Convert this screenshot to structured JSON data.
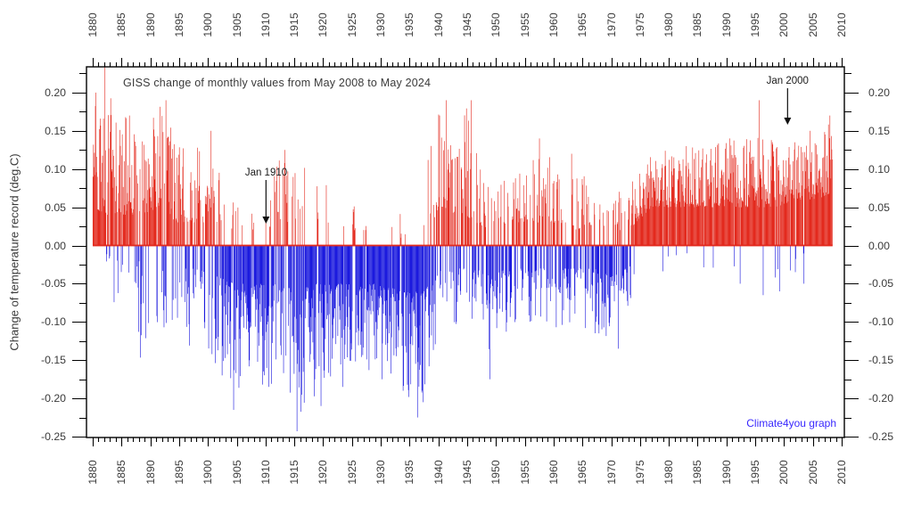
{
  "figure": {
    "title": "GISS change of monthly values from May 2008 to May 2024",
    "y_axis_title": "Change of temperature record (deg.C)",
    "watermark": "Climate4you graph",
    "watermark_color": "#3928fe",
    "annotations": [
      {
        "label": "Jan 1910",
        "year": 1910.1,
        "arrow_from_value": 0.085,
        "arrow_to_value": 0.028
      },
      {
        "label": "Jan 2000",
        "year": 2000.6,
        "arrow_from_value": 0.205,
        "arrow_to_value": 0.157
      }
    ]
  },
  "chart_data": {
    "type": "bar",
    "title": "GISS change of monthly values from May 2008 to May 2024",
    "xlabel": "",
    "ylabel": "Change of temperature record (deg.C)",
    "x_axis": {
      "min": 1880,
      "max": 2010,
      "major_step": 5,
      "minor_step": 1,
      "tick_labels": [
        "1880",
        "1885",
        "1890",
        "1895",
        "1900",
        "1905",
        "1910",
        "1915",
        "1920",
        "1925",
        "1930",
        "1935",
        "1940",
        "1945",
        "1950",
        "1955",
        "1960",
        "1965",
        "1970",
        "1975",
        "1980",
        "1985",
        "1990",
        "1995",
        "2000",
        "2005",
        "2010"
      ]
    },
    "y_axis": {
      "min": -0.253,
      "max": 0.234,
      "major_step": 0.05,
      "minor_step": 0.025,
      "tick_labels": [
        "0.20",
        "0.15",
        "0.10",
        "0.05",
        "0.00",
        "-0.05",
        "-0.10",
        "-0.15",
        "-0.20",
        "-0.25"
      ]
    },
    "bar_unit": "monthly values (one bar per month)",
    "x_data_start": 1880.0,
    "x_data_end": 2008.42,
    "colors": {
      "positive": "#e32a1e",
      "negative": "#1c1ade"
    },
    "grid": false,
    "legend": false,
    "envelope_fields": [
      "year",
      "p_positive",
      "pos_typical",
      "pos_max",
      "neg_typical",
      "neg_max"
    ],
    "envelope_keypoints": [
      [
        1880.0,
        0.92,
        0.05,
        0.22,
        0.01,
        0.05
      ],
      [
        1882.5,
        0.82,
        0.04,
        0.2,
        0.01,
        0.06
      ],
      [
        1885.5,
        0.7,
        0.04,
        0.17,
        0.02,
        0.13
      ],
      [
        1888.5,
        0.65,
        0.04,
        0.16,
        0.02,
        0.15
      ],
      [
        1891.5,
        0.66,
        0.05,
        0.19,
        0.02,
        0.14
      ],
      [
        1894.5,
        0.6,
        0.03,
        0.15,
        0.03,
        0.16
      ],
      [
        1898.0,
        0.58,
        0.03,
        0.13,
        0.03,
        0.13
      ],
      [
        1901.5,
        0.45,
        0.03,
        0.11,
        0.04,
        0.16
      ],
      [
        1904.5,
        0.3,
        0.02,
        0.08,
        0.05,
        0.21
      ],
      [
        1907.5,
        0.27,
        0.02,
        0.06,
        0.05,
        0.18
      ],
      [
        1910.0,
        0.25,
        0.02,
        0.06,
        0.05,
        0.19
      ],
      [
        1912.5,
        0.33,
        0.03,
        0.12,
        0.05,
        0.17
      ],
      [
        1915.5,
        0.28,
        0.03,
        0.1,
        0.06,
        0.23
      ],
      [
        1918.5,
        0.33,
        0.03,
        0.12,
        0.05,
        0.2
      ],
      [
        1921.5,
        0.27,
        0.02,
        0.09,
        0.05,
        0.17
      ],
      [
        1924.5,
        0.22,
        0.02,
        0.06,
        0.05,
        0.15
      ],
      [
        1927.5,
        0.22,
        0.02,
        0.09,
        0.05,
        0.17
      ],
      [
        1930.5,
        0.16,
        0.01,
        0.05,
        0.05,
        0.16
      ],
      [
        1933.5,
        0.16,
        0.01,
        0.06,
        0.06,
        0.18
      ],
      [
        1936.5,
        0.16,
        0.02,
        0.05,
        0.06,
        0.22
      ],
      [
        1938.8,
        0.35,
        0.03,
        0.15,
        0.05,
        0.16
      ],
      [
        1940.5,
        0.6,
        0.05,
        0.19,
        0.03,
        0.1
      ],
      [
        1942.5,
        0.48,
        0.04,
        0.12,
        0.03,
        0.12
      ],
      [
        1944.5,
        0.58,
        0.04,
        0.19,
        0.03,
        0.09
      ],
      [
        1946.5,
        0.5,
        0.03,
        0.15,
        0.03,
        0.1
      ],
      [
        1949.0,
        0.42,
        0.02,
        0.08,
        0.04,
        0.15
      ],
      [
        1952.0,
        0.45,
        0.03,
        0.09,
        0.03,
        0.12
      ],
      [
        1955.0,
        0.45,
        0.03,
        0.1,
        0.03,
        0.12
      ],
      [
        1958.0,
        0.5,
        0.03,
        0.13,
        0.03,
        0.1
      ],
      [
        1961.0,
        0.46,
        0.03,
        0.1,
        0.03,
        0.11
      ],
      [
        1964.0,
        0.44,
        0.02,
        0.11,
        0.03,
        0.1
      ],
      [
        1967.0,
        0.38,
        0.02,
        0.07,
        0.03,
        0.12
      ],
      [
        1970.0,
        0.36,
        0.02,
        0.07,
        0.04,
        0.12
      ],
      [
        1972.5,
        0.46,
        0.02,
        0.08,
        0.03,
        0.09
      ],
      [
        1974.5,
        0.7,
        0.03,
        0.09,
        0.02,
        0.06
      ],
      [
        1977.0,
        0.93,
        0.05,
        0.12,
        0.01,
        0.04
      ],
      [
        1982.0,
        0.94,
        0.05,
        0.13,
        0.01,
        0.04
      ],
      [
        1987.0,
        0.94,
        0.05,
        0.13,
        0.01,
        0.04
      ],
      [
        1991.0,
        0.93,
        0.05,
        0.14,
        0.02,
        0.05
      ],
      [
        1995.0,
        0.92,
        0.05,
        0.15,
        0.02,
        0.07
      ],
      [
        1999.0,
        0.93,
        0.05,
        0.14,
        0.02,
        0.06
      ],
      [
        2003.0,
        0.94,
        0.06,
        0.14,
        0.01,
        0.05
      ],
      [
        2006.0,
        0.95,
        0.06,
        0.15,
        0.01,
        0.04
      ],
      [
        2008.4,
        0.96,
        0.07,
        0.17,
        0.01,
        0.03
      ]
    ],
    "notable_extremes_fields": [
      "year",
      "value"
    ],
    "notable_extremes": [
      [
        1880.5,
        0.2
      ],
      [
        1882.1,
        0.235
      ],
      [
        1886.3,
        0.17
      ],
      [
        1892.7,
        0.19
      ],
      [
        1900.5,
        0.15
      ],
      [
        1904.4,
        -0.215
      ],
      [
        1910.0,
        0.03
      ],
      [
        1913.3,
        0.125
      ],
      [
        1915.4,
        -0.243
      ],
      [
        1919.6,
        -0.21
      ],
      [
        1923.3,
        -0.185
      ],
      [
        1930.2,
        -0.175
      ],
      [
        1933.8,
        -0.19
      ],
      [
        1936.3,
        -0.225
      ],
      [
        1937.3,
        -0.205
      ],
      [
        1940.2,
        0.17
      ],
      [
        1941.3,
        0.19
      ],
      [
        1945.7,
        0.19
      ],
      [
        1948.9,
        -0.175
      ],
      [
        1957.5,
        0.14
      ],
      [
        1963.1,
        0.12
      ],
      [
        1971.2,
        -0.135
      ],
      [
        1983.0,
        0.13
      ],
      [
        1990.5,
        0.14
      ],
      [
        1992.3,
        -0.05
      ],
      [
        1995.7,
        0.19
      ],
      [
        1996.3,
        -0.065
      ],
      [
        1999.2,
        -0.06
      ],
      [
        2000.0,
        0.09
      ],
      [
        2003.4,
        -0.05
      ],
      [
        2004.5,
        0.15
      ],
      [
        2007.9,
        0.17
      ]
    ]
  }
}
